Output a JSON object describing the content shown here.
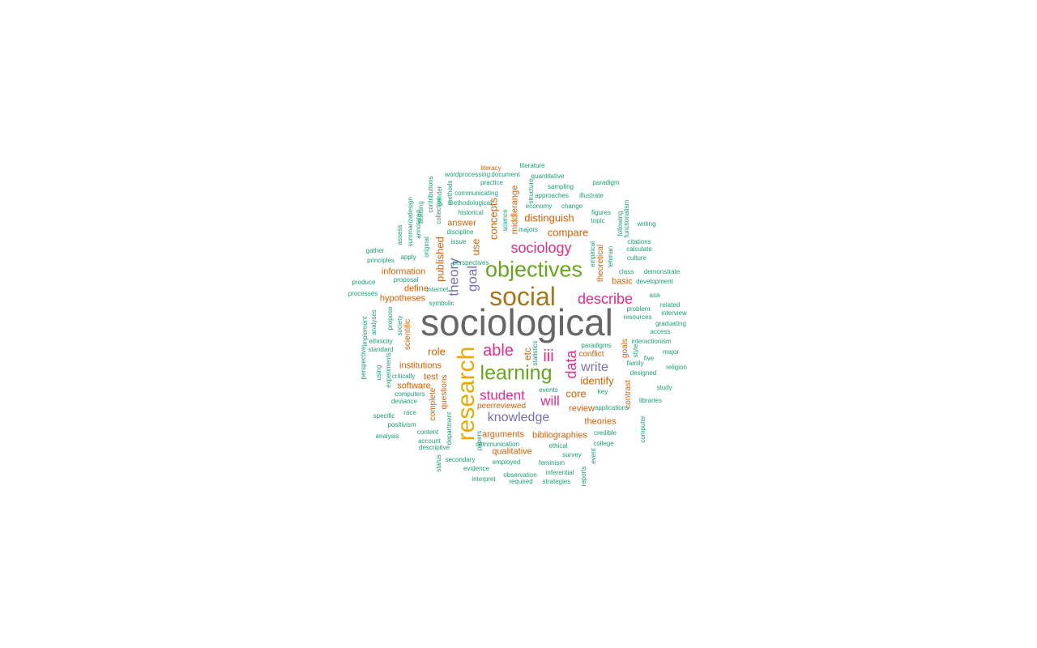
{
  "palette": {
    "gray": "#666666",
    "gold": "#a6761d",
    "yellow": "#e6ab02",
    "green": "#66a61e",
    "pink": "#e7298a",
    "purple": "#7570b3",
    "orange": "#d95f02",
    "teal": "#1b9e77"
  },
  "words": [
    {
      "text": "sociological",
      "color": "gray"
    },
    {
      "text": "social",
      "color": "gold"
    },
    {
      "text": "research",
      "color": "yellow"
    },
    {
      "text": "objectives",
      "color": "green"
    },
    {
      "text": "learning",
      "color": "green"
    },
    {
      "text": "describe",
      "color": "pink"
    },
    {
      "text": "sociology",
      "color": "pink"
    },
    {
      "text": "able",
      "color": "pink"
    },
    {
      "text": "data",
      "color": "pink"
    },
    {
      "text": "student",
      "color": "pink"
    },
    {
      "text": "iii",
      "color": "pink"
    },
    {
      "text": "will",
      "color": "pink"
    },
    {
      "text": "knowledge",
      "color": "purple"
    },
    {
      "text": "theory",
      "color": "purple"
    },
    {
      "text": "goal",
      "color": "purple"
    },
    {
      "text": "write",
      "color": "purple"
    },
    {
      "text": "distinguish",
      "color": "orange"
    },
    {
      "text": "compare",
      "color": "orange"
    },
    {
      "text": "concepts",
      "color": "orange"
    },
    {
      "text": "published",
      "color": "orange"
    },
    {
      "text": "use",
      "color": "orange"
    },
    {
      "text": "identify",
      "color": "orange"
    },
    {
      "text": "core",
      "color": "orange"
    },
    {
      "text": "role",
      "color": "orange"
    },
    {
      "text": "etc",
      "color": "orange"
    },
    {
      "text": "hypotheses",
      "color": "orange"
    },
    {
      "text": "information",
      "color": "orange"
    },
    {
      "text": "institutions",
      "color": "orange"
    },
    {
      "text": "software",
      "color": "orange"
    },
    {
      "text": "test",
      "color": "orange"
    },
    {
      "text": "answer",
      "color": "orange"
    },
    {
      "text": "middlerange",
      "color": "orange"
    },
    {
      "text": "define",
      "color": "orange"
    },
    {
      "text": "basic",
      "color": "orange"
    },
    {
      "text": "conflict",
      "color": "orange"
    },
    {
      "text": "goals",
      "color": "orange"
    },
    {
      "text": "theoretical",
      "color": "orange"
    },
    {
      "text": "contrast",
      "color": "orange"
    },
    {
      "text": "review",
      "color": "orange"
    },
    {
      "text": "theories",
      "color": "orange"
    },
    {
      "text": "bibliographies",
      "color": "orange"
    },
    {
      "text": "arguments",
      "color": "orange"
    },
    {
      "text": "qualitative",
      "color": "orange"
    },
    {
      "text": "peerreviewed",
      "color": "orange"
    },
    {
      "text": "scientific",
      "color": "orange"
    },
    {
      "text": "questions",
      "color": "orange"
    },
    {
      "text": "complete",
      "color": "orange"
    },
    {
      "text": "literacy",
      "color": "orange"
    },
    {
      "text": "literature",
      "color": "teal"
    },
    {
      "text": "wordprocessing",
      "color": "teal"
    },
    {
      "text": "document",
      "color": "teal"
    },
    {
      "text": "quantitative",
      "color": "teal"
    },
    {
      "text": "practice",
      "color": "teal"
    },
    {
      "text": "sampling",
      "color": "teal"
    },
    {
      "text": "paradigm",
      "color": "teal"
    },
    {
      "text": "communicating",
      "color": "teal"
    },
    {
      "text": "approaches",
      "color": "teal"
    },
    {
      "text": "illustrate",
      "color": "teal"
    },
    {
      "text": "methodological",
      "color": "teal"
    },
    {
      "text": "economy",
      "color": "teal"
    },
    {
      "text": "change",
      "color": "teal"
    },
    {
      "text": "historical",
      "color": "teal"
    },
    {
      "text": "figures",
      "color": "teal"
    },
    {
      "text": "topic",
      "color": "teal"
    },
    {
      "text": "discipline",
      "color": "teal"
    },
    {
      "text": "majors",
      "color": "teal"
    },
    {
      "text": "issue",
      "color": "teal"
    },
    {
      "text": "writing",
      "color": "teal"
    },
    {
      "text": "citations",
      "color": "teal"
    },
    {
      "text": "calculate",
      "color": "teal"
    },
    {
      "text": "gather",
      "color": "teal"
    },
    {
      "text": "principles",
      "color": "teal"
    },
    {
      "text": "apply",
      "color": "teal"
    },
    {
      "text": "culture",
      "color": "teal"
    },
    {
      "text": "perspectives",
      "color": "teal"
    },
    {
      "text": "class",
      "color": "teal"
    },
    {
      "text": "demonstrate",
      "color": "teal"
    },
    {
      "text": "produce",
      "color": "teal"
    },
    {
      "text": "proposal",
      "color": "teal"
    },
    {
      "text": "development",
      "color": "teal"
    },
    {
      "text": "processes",
      "color": "teal"
    },
    {
      "text": "internet",
      "color": "teal"
    },
    {
      "text": "asa",
      "color": "teal"
    },
    {
      "text": "symbolic",
      "color": "teal"
    },
    {
      "text": "related",
      "color": "teal"
    },
    {
      "text": "problem",
      "color": "teal"
    },
    {
      "text": "interview",
      "color": "teal"
    },
    {
      "text": "resources",
      "color": "teal"
    },
    {
      "text": "graduating",
      "color": "teal"
    },
    {
      "text": "access",
      "color": "teal"
    },
    {
      "text": "interactionism",
      "color": "teal"
    },
    {
      "text": "ethnicity",
      "color": "teal"
    },
    {
      "text": "major",
      "color": "teal"
    },
    {
      "text": "standard",
      "color": "teal"
    },
    {
      "text": "paradigms",
      "color": "teal"
    },
    {
      "text": "five",
      "color": "teal"
    },
    {
      "text": "religion",
      "color": "teal"
    },
    {
      "text": "designed",
      "color": "teal"
    },
    {
      "text": "family",
      "color": "teal"
    },
    {
      "text": "study",
      "color": "teal"
    },
    {
      "text": "critically",
      "color": "teal"
    },
    {
      "text": "key",
      "color": "teal"
    },
    {
      "text": "events",
      "color": "teal"
    },
    {
      "text": "libraries",
      "color": "teal"
    },
    {
      "text": "computers",
      "color": "teal"
    },
    {
      "text": "deviance",
      "color": "teal"
    },
    {
      "text": "applications",
      "color": "teal"
    },
    {
      "text": "race",
      "color": "teal"
    },
    {
      "text": "specific",
      "color": "teal"
    },
    {
      "text": "credible",
      "color": "teal"
    },
    {
      "text": "positivism",
      "color": "teal"
    },
    {
      "text": "content",
      "color": "teal"
    },
    {
      "text": "analysis",
      "color": "teal"
    },
    {
      "text": "communication",
      "color": "teal"
    },
    {
      "text": "account",
      "color": "teal"
    },
    {
      "text": "ethical",
      "color": "teal"
    },
    {
      "text": "college",
      "color": "teal"
    },
    {
      "text": "descriptive",
      "color": "teal"
    },
    {
      "text": "survey",
      "color": "teal"
    },
    {
      "text": "secondary",
      "color": "teal"
    },
    {
      "text": "employed",
      "color": "teal"
    },
    {
      "text": "feminism",
      "color": "teal"
    },
    {
      "text": "evidence",
      "color": "teal"
    },
    {
      "text": "observation",
      "color": "teal"
    },
    {
      "text": "inferential",
      "color": "teal"
    },
    {
      "text": "interpret",
      "color": "teal"
    },
    {
      "text": "required",
      "color": "teal"
    },
    {
      "text": "strategies",
      "color": "teal"
    },
    {
      "text": "assess",
      "color": "teal"
    },
    {
      "text": "summarize",
      "color": "teal"
    },
    {
      "text": "design",
      "color": "teal"
    },
    {
      "text": "annotated",
      "color": "teal"
    },
    {
      "text": "building",
      "color": "teal"
    },
    {
      "text": "original",
      "color": "teal"
    },
    {
      "text": "contributions",
      "color": "teal"
    },
    {
      "text": "collection",
      "color": "teal"
    },
    {
      "text": "gender",
      "color": "teal"
    },
    {
      "text": "methods",
      "color": "teal"
    },
    {
      "text": "science",
      "color": "teal"
    },
    {
      "text": "structure",
      "color": "teal"
    },
    {
      "text": "empirical",
      "color": "teal"
    },
    {
      "text": "lehman",
      "color": "teal"
    },
    {
      "text": "following",
      "color": "teal"
    },
    {
      "text": "functionalism",
      "color": "teal"
    },
    {
      "text": "implement",
      "color": "teal"
    },
    {
      "text": "analyses",
      "color": "teal"
    },
    {
      "text": "propose",
      "color": "teal"
    },
    {
      "text": "society",
      "color": "teal"
    },
    {
      "text": "perspective",
      "color": "teal"
    },
    {
      "text": "using",
      "color": "teal"
    },
    {
      "text": "experiments",
      "color": "teal"
    },
    {
      "text": "statistics",
      "color": "teal"
    },
    {
      "text": "style",
      "color": "teal"
    },
    {
      "text": "department",
      "color": "teal"
    },
    {
      "text": "status",
      "color": "teal"
    },
    {
      "text": "papers",
      "color": "teal"
    },
    {
      "text": "event",
      "color": "teal"
    },
    {
      "text": "reports",
      "color": "teal"
    },
    {
      "text": "computer",
      "color": "teal"
    },
    {
      "text": "technological",
      "color": "teal"
    }
  ]
}
